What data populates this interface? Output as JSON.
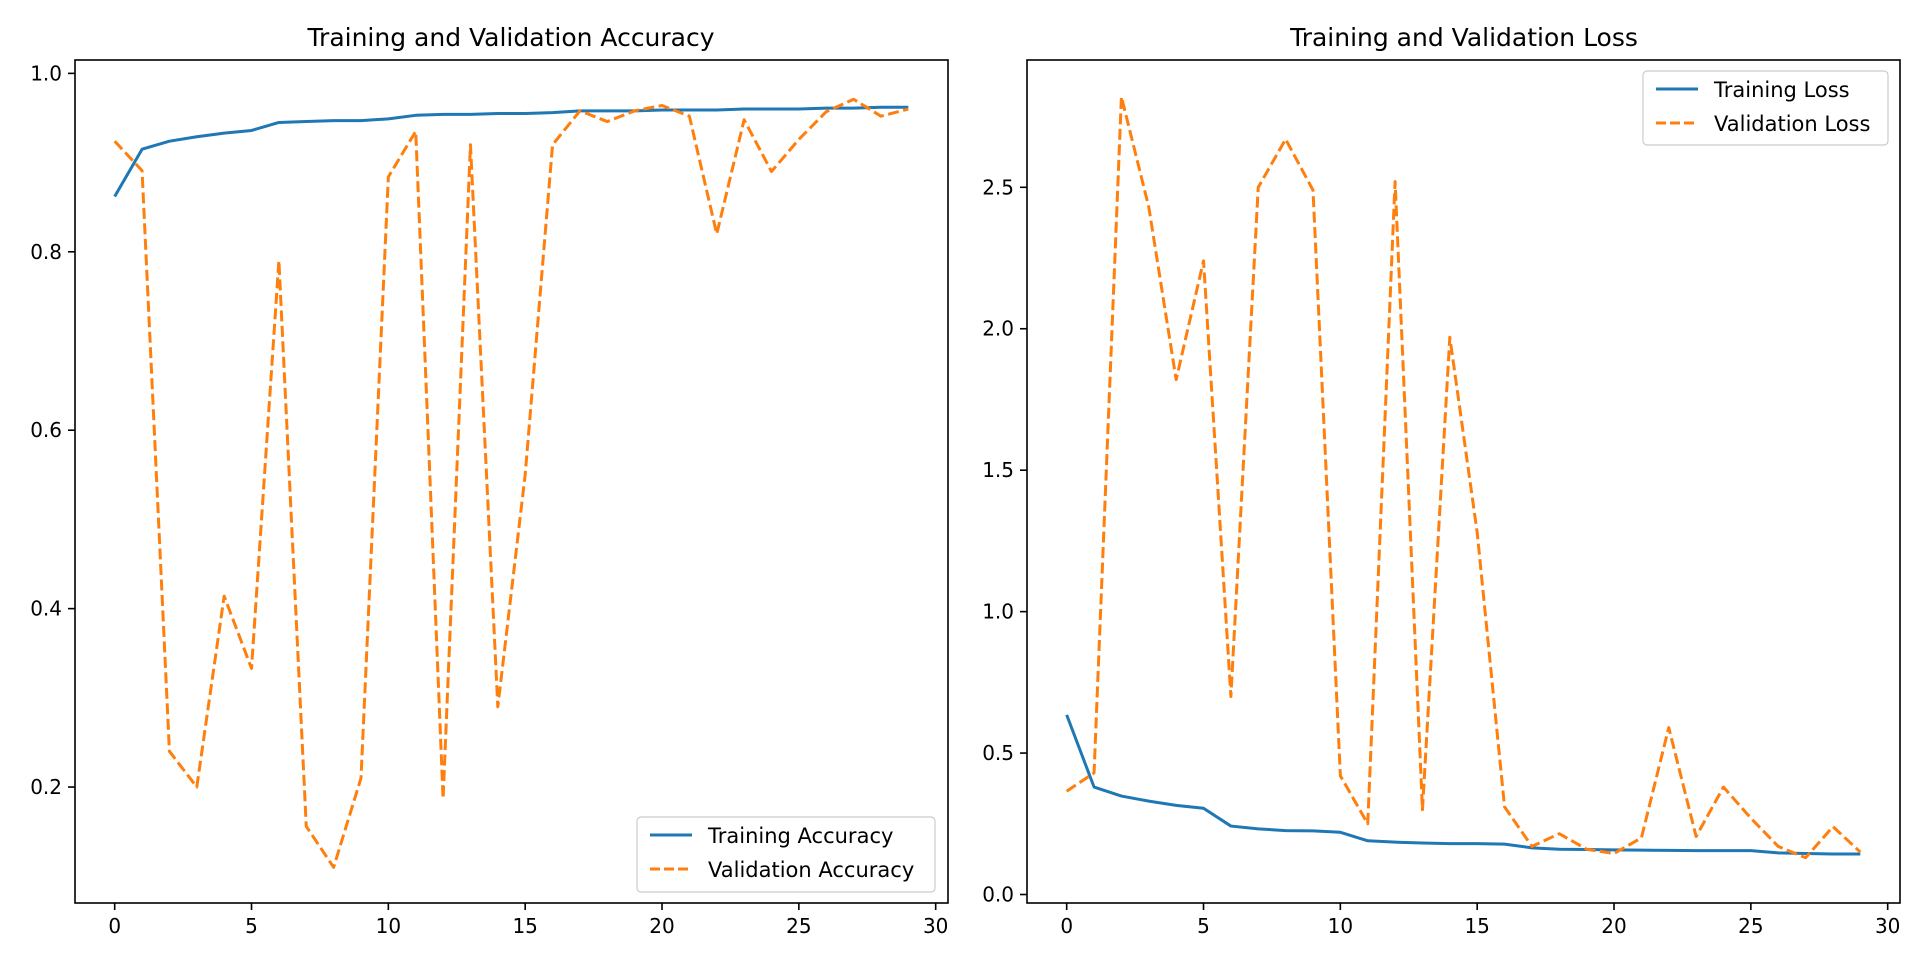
{
  "figure": {
    "background": "#ffffff"
  },
  "chart_data": [
    {
      "type": "line",
      "title": "Training and Validation Accuracy",
      "xlabel": "",
      "ylabel": "",
      "xlim": [
        -1.45,
        30.45
      ],
      "ylim": [
        0.07,
        1.015
      ],
      "xticks": [
        0,
        5,
        10,
        15,
        20,
        25,
        30
      ],
      "xtick_labels": [
        "0",
        "5",
        "10",
        "15",
        "20",
        "25",
        "30"
      ],
      "yticks": [
        0.2,
        0.4,
        0.6,
        0.8,
        1.0
      ],
      "ytick_labels": [
        "0.2",
        "0.4",
        "0.6",
        "0.8",
        "1.0"
      ],
      "grid": false,
      "legend_position": "lower-right",
      "x": [
        0,
        1,
        2,
        3,
        4,
        5,
        6,
        7,
        8,
        9,
        10,
        11,
        12,
        13,
        14,
        15,
        16,
        17,
        18,
        19,
        20,
        21,
        22,
        23,
        24,
        25,
        26,
        27,
        28,
        29
      ],
      "series": [
        {
          "name": "Training Accuracy",
          "color": "#1f77b4",
          "dash": "solid",
          "values": [
            0.862,
            0.915,
            0.924,
            0.929,
            0.933,
            0.936,
            0.945,
            0.946,
            0.947,
            0.947,
            0.949,
            0.953,
            0.954,
            0.954,
            0.955,
            0.955,
            0.956,
            0.958,
            0.958,
            0.958,
            0.959,
            0.959,
            0.959,
            0.96,
            0.96,
            0.96,
            0.961,
            0.961,
            0.962,
            0.962
          ]
        },
        {
          "name": "Validation Accuracy",
          "color": "#ff7f0e",
          "dash": "dashed",
          "values": [
            0.924,
            0.891,
            0.24,
            0.2,
            0.414,
            0.333,
            0.79,
            0.156,
            0.11,
            0.21,
            0.884,
            0.935,
            0.187,
            0.92,
            0.29,
            0.55,
            0.92,
            0.958,
            0.946,
            0.958,
            0.964,
            0.952,
            0.82,
            0.948,
            0.89,
            0.926,
            0.957,
            0.971,
            0.952,
            0.96
          ]
        }
      ]
    },
    {
      "type": "line",
      "title": "Training and Validation Loss",
      "xlabel": "",
      "ylabel": "",
      "xlim": [
        -1.45,
        30.45
      ],
      "ylim": [
        -0.03,
        2.95
      ],
      "xticks": [
        0,
        5,
        10,
        15,
        20,
        25,
        30
      ],
      "xtick_labels": [
        "0",
        "5",
        "10",
        "15",
        "20",
        "25",
        "30"
      ],
      "yticks": [
        0.0,
        0.5,
        1.0,
        1.5,
        2.0,
        2.5
      ],
      "ytick_labels": [
        "0.0",
        "0.5",
        "1.0",
        "1.5",
        "2.0",
        "2.5"
      ],
      "grid": false,
      "legend_position": "upper-right",
      "x": [
        0,
        1,
        2,
        3,
        4,
        5,
        6,
        7,
        8,
        9,
        10,
        11,
        12,
        13,
        14,
        15,
        16,
        17,
        18,
        19,
        20,
        21,
        22,
        23,
        24,
        25,
        26,
        27,
        28,
        29
      ],
      "series": [
        {
          "name": "Training Loss",
          "color": "#1f77b4",
          "dash": "solid",
          "values": [
            0.635,
            0.38,
            0.348,
            0.33,
            0.315,
            0.305,
            0.242,
            0.232,
            0.226,
            0.225,
            0.22,
            0.19,
            0.185,
            0.182,
            0.18,
            0.18,
            0.178,
            0.165,
            0.16,
            0.159,
            0.158,
            0.157,
            0.156,
            0.155,
            0.155,
            0.155,
            0.147,
            0.145,
            0.143,
            0.143
          ]
        },
        {
          "name": "Validation Loss",
          "color": "#ff7f0e",
          "dash": "dashed",
          "values": [
            0.365,
            0.43,
            2.82,
            2.43,
            1.82,
            2.24,
            0.7,
            2.5,
            2.67,
            2.49,
            0.42,
            0.25,
            2.52,
            0.3,
            1.97,
            1.28,
            0.31,
            0.17,
            0.215,
            0.16,
            0.145,
            0.2,
            0.59,
            0.205,
            0.38,
            0.27,
            0.17,
            0.13,
            0.24,
            0.15
          ]
        }
      ]
    }
  ]
}
